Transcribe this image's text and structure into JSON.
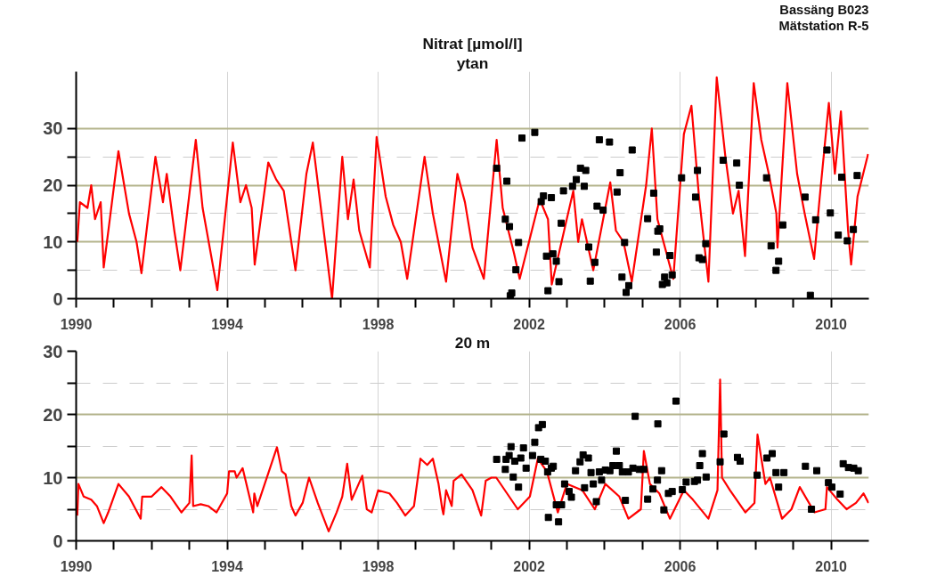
{
  "chart_data": [
    {
      "type": "line",
      "title": "Nitrat [µmol/l]",
      "subtitle": "ytan",
      "annotations": [
        "Bassäng B023",
        "Mätstation R-5"
      ],
      "xlim": [
        1990,
        2011
      ],
      "ylim": [
        0,
        40
      ],
      "xticks": [
        1990,
        {
          "value": 1991,
          "label": null
        },
        {
          "value": 1992,
          "label": null
        },
        {
          "value": 1993,
          "label": null
        },
        1994,
        {
          "value": 1995,
          "label": null
        },
        {
          "value": 1996,
          "label": null
        },
        {
          "value": 1997,
          "label": null
        },
        1998,
        {
          "value": 1999,
          "label": null
        },
        {
          "value": 2000,
          "label": null
        },
        {
          "value": 2001,
          "label": null
        },
        2002,
        {
          "value": 2003,
          "label": null
        },
        {
          "value": 2004,
          "label": null
        },
        {
          "value": 2005,
          "label": null
        },
        2006,
        {
          "value": 2007,
          "label": null
        },
        {
          "value": 2008,
          "label": null
        },
        {
          "value": 2009,
          "label": null
        },
        2010
      ],
      "yticks": [
        0,
        {
          "value": 5,
          "label": null
        },
        10,
        {
          "value": 15,
          "label": null
        },
        20,
        {
          "value": 25,
          "label": null
        },
        30
      ],
      "grid": true,
      "series": [
        {
          "color": "#ff0000",
          "x": [
            1990.03,
            1990.1,
            1990.3,
            1990.4,
            1990.5,
            1990.65,
            1990.73,
            1991.12,
            1991.4,
            1991.6,
            1991.73,
            1992.1,
            1992.3,
            1992.4,
            1992.6,
            1992.76,
            1993.17,
            1993.35,
            1993.74,
            1994.15,
            1994.35,
            1994.5,
            1994.65,
            1994.73,
            1995.09,
            1995.3,
            1995.5,
            1995.7,
            1995.81,
            1996.1,
            1996.27,
            1996.78,
            1997.05,
            1997.2,
            1997.35,
            1997.5,
            1997.78,
            1997.96,
            1998.2,
            1998.4,
            1998.6,
            1998.77,
            1999.23,
            1999.45,
            1999.8,
            2000.1,
            2000.3,
            2000.5,
            2000.8,
            2001.14,
            2001.3,
            2001.45,
            2001.6,
            2001.75,
            2002.28,
            2002.5,
            2002.6,
            2003.17,
            2003.3,
            2003.4,
            2003.6,
            2003.7,
            2004.15,
            2004.3,
            2004.5,
            2004.72,
            2005.1,
            2005.25,
            2005.4,
            2005.82,
            2006.1,
            2006.3,
            2006.5,
            2006.75,
            2006.97,
            2007.2,
            2007.4,
            2007.55,
            2007.72,
            2007.95,
            2008.15,
            2008.35,
            2008.55,
            2008.58,
            2008.84,
            2009.1,
            2009.3,
            2009.55,
            2009.7,
            2009.94,
            2010.1,
            2010.26,
            2010.45,
            2010.53,
            2010.7,
            2010.98
          ],
          "values": [
            10,
            17,
            16,
            20,
            14,
            17,
            5.5,
            26,
            15,
            10,
            4.5,
            25,
            17,
            22,
            12,
            5,
            28,
            16,
            1.5,
            27.5,
            17,
            20,
            16,
            6,
            24,
            21,
            19,
            10,
            5,
            22,
            27.5,
            0,
            25,
            14,
            21,
            12,
            5.5,
            28.5,
            18,
            13,
            10,
            3.5,
            25,
            15,
            3,
            22,
            17,
            9,
            3.5,
            28,
            16,
            12,
            8,
            3.5,
            17.5,
            14,
            2.5,
            19,
            10,
            14,
            8,
            5,
            20.5,
            12,
            10,
            3,
            20,
            30,
            14,
            3.5,
            29,
            34,
            18,
            3,
            39,
            25,
            15,
            19,
            7.5,
            38,
            28,
            22,
            15,
            9,
            38,
            22,
            15,
            7,
            18,
            34.5,
            22,
            33,
            12,
            6,
            18,
            25.5
          ]
        },
        {
          "type": "scatter",
          "color": "#000000",
          "marker": "square",
          "x": [
            2001.14,
            2001.41,
            2001.37,
            2001.48,
            2001.72,
            2001.65,
            2001.54,
            2001.5,
            2001.81,
            2002.15,
            2002.38,
            2002.32,
            2002.59,
            2002.46,
            2002.63,
            2002.72,
            2002.5,
            2002.79,
            2002.91,
            2002.85,
            2003.15,
            2003.25,
            2003.36,
            2003.5,
            2003.46,
            2003.58,
            2003.74,
            2003.62,
            2003.8,
            2003.96,
            2003.86,
            2004.13,
            2004.41,
            2004.33,
            2004.53,
            2004.46,
            2004.64,
            2004.57,
            2004.73,
            2005.3,
            2005.14,
            2005.41,
            2005.46,
            2005.37,
            2005.73,
            2005.59,
            2005.79,
            2005.53,
            2005.65,
            2006.04,
            2006.46,
            2006.41,
            2006.68,
            2006.5,
            2006.59,
            2007.14,
            2007.5,
            2007.57,
            2008.29,
            2008.41,
            2008.72,
            2008.61,
            2008.54,
            2009.31,
            2009.45,
            2009.59,
            2009.89,
            2009.98,
            2010.28,
            2010.19,
            2010.43,
            2010.59,
            2010.69
          ],
          "values": [
            23,
            20.7,
            14,
            12.7,
            9.9,
            5.1,
            1,
            0.5,
            28.3,
            29.3,
            18.1,
            17.1,
            17.8,
            7.5,
            7.9,
            6.6,
            1.4,
            3,
            19,
            13.3,
            19.8,
            21,
            23,
            22.6,
            19.8,
            9.1,
            6.4,
            3.1,
            16.3,
            15.6,
            28,
            27.6,
            22.2,
            18.8,
            9.9,
            3.8,
            2.3,
            1.1,
            26.2,
            18.6,
            14.1,
            11.9,
            12.3,
            8.2,
            7.6,
            3.8,
            4.2,
            2.5,
            2.8,
            21.3,
            22.6,
            17.9,
            9.7,
            7.2,
            6.9,
            24.4,
            23.9,
            20,
            21.3,
            9.3,
            13,
            6.6,
            5,
            17.9,
            0.6,
            13.9,
            26.2,
            15.1,
            21.4,
            11.2,
            10.2,
            12.2,
            21.7
          ]
        }
      ]
    },
    {
      "type": "line",
      "title": "20 m",
      "xlim": [
        1990,
        2011
      ],
      "ylim": [
        0,
        30
      ],
      "xticks": [
        1990,
        {
          "value": 1991,
          "label": null
        },
        {
          "value": 1992,
          "label": null
        },
        {
          "value": 1993,
          "label": null
        },
        1994,
        {
          "value": 1995,
          "label": null
        },
        {
          "value": 1996,
          "label": null
        },
        {
          "value": 1997,
          "label": null
        },
        1998,
        {
          "value": 1999,
          "label": null
        },
        {
          "value": 2000,
          "label": null
        },
        {
          "value": 2001,
          "label": null
        },
        2002,
        {
          "value": 2003,
          "label": null
        },
        {
          "value": 2004,
          "label": null
        },
        {
          "value": 2005,
          "label": null
        },
        2006,
        {
          "value": 2007,
          "label": null
        },
        {
          "value": 2008,
          "label": null
        },
        {
          "value": 2009,
          "label": null
        },
        2010
      ],
      "yticks": [
        0,
        {
          "value": 5,
          "label": null
        },
        10,
        {
          "value": 15,
          "label": null
        },
        20,
        {
          "value": 25,
          "label": null
        },
        30
      ],
      "grid": true,
      "series": [
        {
          "color": "#ff0000",
          "x": [
            1990.03,
            1990.06,
            1990.2,
            1990.4,
            1990.55,
            1990.73,
            1990.85,
            1991.12,
            1991.4,
            1991.71,
            1991.75,
            1992.0,
            1992.26,
            1992.5,
            1992.79,
            1993.0,
            1993.06,
            1993.1,
            1993.3,
            1993.5,
            1993.72,
            1994.0,
            1994.05,
            1994.2,
            1994.25,
            1994.41,
            1994.69,
            1994.72,
            1994.8,
            1995.32,
            1995.45,
            1995.55,
            1995.7,
            1995.81,
            1996.0,
            1996.17,
            1996.4,
            1996.69,
            1996.9,
            1997.05,
            1997.18,
            1997.3,
            1997.58,
            1997.7,
            1997.83,
            1998.0,
            1998.3,
            1998.5,
            1998.72,
            1998.95,
            1999.12,
            1999.3,
            1999.45,
            1999.6,
            1999.7,
            1999.73,
            1999.8,
            1999.95,
            2000.0,
            2000.21,
            2000.5,
            2000.73,
            2000.85,
            2001.0,
            2001.13,
            2001.7,
            2002.02,
            2002.23,
            2002.35,
            2002.47,
            2002.76,
            2003.0,
            2003.41,
            2003.74,
            2004.02,
            2004.39,
            2004.63,
            2004.96,
            2005.04,
            2005.2,
            2005.45,
            2005.73,
            2006.1,
            2006.34,
            2006.75,
            2006.99,
            2007.06,
            2007.11,
            2007.32,
            2007.73,
            2007.97,
            2008.05,
            2008.26,
            2008.38,
            2008.7,
            2008.95,
            2009.17,
            2009.56,
            2009.85,
            2009.89,
            2010.17,
            2010.41,
            2010.66,
            2010.86,
            2010.99
          ],
          "values": [
            4,
            9,
            7,
            6.5,
            5.5,
            2.8,
            4.5,
            9,
            7,
            3.5,
            7,
            7,
            8.5,
            7,
            4.5,
            6,
            13.5,
            5.5,
            5.8,
            5.5,
            4.5,
            7.5,
            11,
            11,
            10,
            11.5,
            4.5,
            7.5,
            5.5,
            14.8,
            11,
            10.5,
            5.5,
            4,
            6,
            10,
            6,
            1.5,
            4.5,
            7,
            12.2,
            6.5,
            10.3,
            5,
            4.5,
            8,
            7.5,
            6,
            4,
            5.5,
            13,
            12,
            13,
            9,
            5,
            4.2,
            8,
            5.5,
            9.5,
            10.5,
            8,
            4,
            9.5,
            10,
            10,
            5,
            7,
            13,
            12,
            11,
            4.5,
            9,
            8,
            5,
            9,
            7,
            3.5,
            5,
            14.2,
            9,
            7.5,
            3.5,
            8,
            6.5,
            3.5,
            8,
            25.5,
            10,
            8,
            4.5,
            6,
            16.8,
            9,
            10,
            3.5,
            5,
            8.5,
            4.5,
            5,
            8.5,
            6.5,
            5,
            6,
            7.5,
            6
          ]
        },
        {
          "type": "scatter",
          "color": "#000000",
          "marker": "square",
          "x": [
            2001.14,
            2001.37,
            2001.39,
            2001.52,
            2001.47,
            2001.62,
            2001.58,
            2001.72,
            2001.78,
            2001.85,
            2001.92,
            2002.09,
            2002.15,
            2002.25,
            2002.35,
            2002.31,
            2002.43,
            2002.49,
            2002.59,
            2002.64,
            2002.51,
            2002.72,
            2002.86,
            2002.78,
            2002.94,
            2003.06,
            2003.12,
            2003.23,
            2003.35,
            2003.43,
            2003.57,
            2003.64,
            2003.47,
            2003.7,
            2003.78,
            2003.86,
            2003.92,
            2004.02,
            2004.14,
            2004.22,
            2004.31,
            2004.39,
            2004.47,
            2004.55,
            2004.63,
            2004.75,
            2004.81,
            2004.92,
            2005.04,
            2005.14,
            2005.28,
            2005.4,
            2005.41,
            2005.51,
            2005.57,
            2005.69,
            2005.79,
            2005.89,
            2006.06,
            2006.16,
            2006.38,
            2006.46,
            2006.52,
            2006.59,
            2006.69,
            2007.06,
            2007.16,
            2007.52,
            2007.59,
            2008.04,
            2008.3,
            2008.44,
            2008.54,
            2008.61,
            2008.75,
            2009.32,
            2009.48,
            2009.62,
            2009.93,
            2010.02,
            2010.24,
            2010.32,
            2010.46,
            2010.6,
            2010.72
          ],
          "values": [
            12.9,
            11.3,
            12.9,
            14.9,
            13.5,
            12.6,
            10.1,
            8.5,
            13.1,
            14.7,
            11.5,
            13.5,
            15.6,
            17.9,
            18.4,
            12.9,
            12.6,
            10.9,
            11.5,
            11.8,
            3.7,
            5.7,
            5.7,
            3,
            9,
            7.8,
            6.9,
            11.1,
            12.5,
            13.6,
            13.1,
            10.8,
            8.4,
            9,
            6.2,
            10.9,
            9.6,
            11.2,
            11.1,
            11.9,
            14.2,
            11.9,
            10.9,
            6.4,
            10.9,
            11.5,
            19.7,
            11.3,
            11.3,
            6.6,
            8.2,
            9.6,
            18.5,
            11.1,
            4.9,
            7.5,
            7.8,
            22.1,
            8.1,
            9.3,
            9.4,
            9.6,
            11.9,
            13.8,
            10.1,
            12.5,
            16.9,
            13.2,
            12.6,
            10.4,
            13.1,
            13.8,
            10.8,
            8.5,
            10.8,
            11.8,
            5,
            11.1,
            9.2,
            8.5,
            7.4,
            12.2,
            11.6,
            11.5,
            11.1
          ]
        }
      ]
    }
  ]
}
